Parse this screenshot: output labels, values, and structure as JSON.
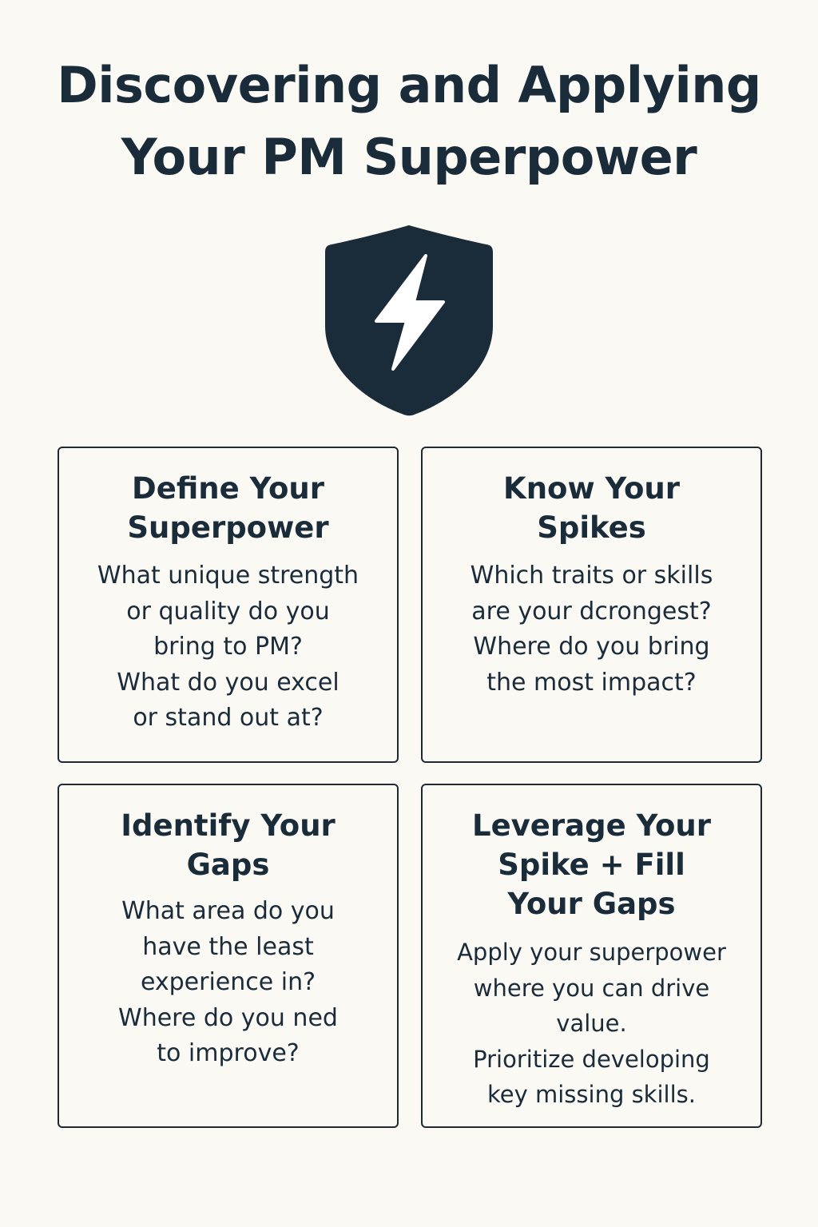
{
  "title_lines": [
    "Discovering and Applying",
    "Your PM Superpower"
  ],
  "icon": {
    "name": "shield-lightning-icon",
    "shield_color": "#1a2b3a",
    "bolt_color": "#ffffff"
  },
  "colors": {
    "background": "#fbf9f4",
    "text": "#1a2b3a",
    "card_border": "#1f2a33"
  },
  "cards": [
    {
      "title_lines": [
        "Define Your",
        "Superpower"
      ],
      "body_lines": [
        "What unique strength",
        "or quality do you",
        "bring to PM?",
        "What do you excel",
        "or stand out at?"
      ]
    },
    {
      "title_lines": [
        "Know Your",
        "Spikes"
      ],
      "body_lines": [
        "Which traits or skills",
        "are your dcrongest?",
        "Where do you bring",
        "the most impact?"
      ]
    },
    {
      "title_lines": [
        "Identify Your",
        "Gaps"
      ],
      "body_lines": [
        "What area do you",
        "have the least",
        "experience in?",
        "Where do you ned",
        "to improve?"
      ]
    },
    {
      "title_lines": [
        "Leverage Your",
        "Spike + Fill",
        "Your Gaps"
      ],
      "body_lines": [
        "Apply your superpower",
        "where you can drive",
        "value.",
        "Prioritize developing",
        "key missing skills."
      ]
    }
  ]
}
